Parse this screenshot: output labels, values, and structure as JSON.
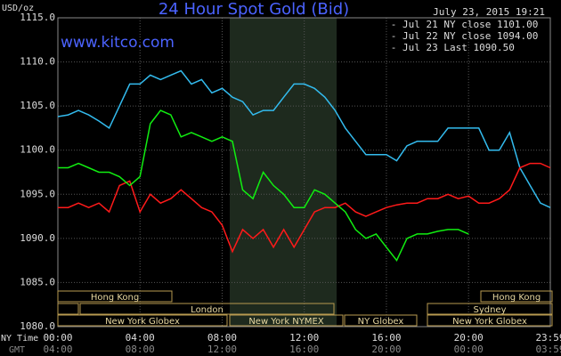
{
  "chart_data": {
    "type": "line",
    "title": "24 Hour Spot Gold (Bid)",
    "timestamp": "July 23, 2015 19:21",
    "website": "www.kitco.com",
    "y_label": "USD/oz",
    "x_label": "NY Time",
    "x2_label": "GMT",
    "x": [
      0,
      0.5,
      1,
      1.5,
      2,
      2.5,
      3,
      3.5,
      4,
      4.5,
      5,
      5.5,
      6,
      6.5,
      7,
      7.5,
      8,
      8.5,
      9,
      9.5,
      10,
      10.5,
      11,
      11.5,
      12,
      12.5,
      13,
      13.5,
      14,
      14.5,
      15,
      15.5,
      16,
      16.5,
      17,
      17.5,
      18,
      18.5,
      19,
      19.5,
      20,
      20.5,
      21,
      21.5,
      22,
      22.5,
      23,
      23.5,
      23.98
    ],
    "series": [
      {
        "name": "Jul 21 NY close 1101.00",
        "color": "#33bbee",
        "values": [
          1103.8,
          1104,
          1104.5,
          1104,
          1103.3,
          1102.5,
          1105,
          1107.5,
          1107.5,
          1108.5,
          1108,
          1108.5,
          1109,
          1107.5,
          1108,
          1106.5,
          1107,
          1106,
          1105.5,
          1104,
          1104.5,
          1104.5,
          1106,
          1107.5,
          1107.5,
          1107,
          1106,
          1104.5,
          1102.5,
          1101,
          1099.5,
          1099.5,
          1099.5,
          1098.8,
          1100.5,
          1101,
          1101,
          1101,
          1102.5,
          1102.5,
          1102.5,
          1102.5,
          1100,
          1100,
          1102,
          1098,
          1096,
          1094,
          1093.5
        ]
      },
      {
        "name": "Jul 22 NY close 1094.00",
        "color": "#ff1a1a",
        "values": [
          1093.5,
          1093.5,
          1094,
          1093.5,
          1094,
          1093,
          1096,
          1096.5,
          1093,
          1095,
          1094,
          1094.5,
          1095.5,
          1094.5,
          1093.5,
          1093,
          1091.5,
          1088.5,
          1091,
          1090,
          1091,
          1089,
          1091,
          1089,
          1091,
          1093,
          1093.5,
          1093.5,
          1094,
          1093,
          1092.5,
          1093,
          1093.5,
          1093.8,
          1094,
          1094,
          1094.5,
          1094.5,
          1095,
          1094.5,
          1094.8,
          1094,
          1094,
          1094.5,
          1095.5,
          1098,
          1098.5,
          1098.5,
          1098
        ]
      },
      {
        "name": "Jul 23 Last 1090.50",
        "color": "#11ee11",
        "values": [
          1098,
          1098,
          1098.5,
          1098,
          1097.5,
          1097.5,
          1097,
          1096,
          1097,
          1103,
          1104.5,
          1104,
          1101.5,
          1102,
          1101.5,
          1101,
          1101.5,
          1101,
          1095.5,
          1094.5,
          1097.5,
          1096,
          1095,
          1093.5,
          1093.5,
          1095.5,
          1095,
          1094,
          1093,
          1091,
          1090,
          1090.5,
          1089,
          1087.5,
          1090,
          1090.5,
          1090.5,
          1090.8,
          1091,
          1091,
          1090.5,
          null,
          null,
          null,
          null,
          null,
          null,
          null,
          null
        ]
      }
    ],
    "xlim": [
      0,
      23.983
    ],
    "xticks": [
      {
        "value": 0,
        "label": "00:00"
      },
      {
        "value": 4,
        "label": "04:00"
      },
      {
        "value": 8,
        "label": "08:00"
      },
      {
        "value": 12,
        "label": "12:00"
      },
      {
        "value": 16,
        "label": "16:00"
      },
      {
        "value": 20,
        "label": "20:00"
      },
      {
        "value": 23.983,
        "label": "23:59"
      }
    ],
    "x2ticklabels": [
      "04:00",
      "08:00",
      "12:00",
      "16:00",
      "20:00",
      "00:00",
      "03:59"
    ],
    "ylim": [
      1080,
      1115
    ],
    "yticks": [
      {
        "value": 1080,
        "label": "1080.0"
      },
      {
        "value": 1085,
        "label": "1085.0"
      },
      {
        "value": 1090,
        "label": "1090.0"
      },
      {
        "value": 1095,
        "label": "1095.0"
      },
      {
        "value": 1100,
        "label": "1100.0"
      },
      {
        "value": 1105,
        "label": "1105.0"
      },
      {
        "value": 1110,
        "label": "1110.0"
      },
      {
        "value": 1115,
        "label": "1115.0"
      }
    ],
    "grid": true,
    "sessions": [
      "Hong Kong",
      "Hong Kong",
      "London",
      "Sydney",
      "New York Globex",
      "New York NYMEX",
      "NY Globex",
      "New York Globex"
    ]
  }
}
